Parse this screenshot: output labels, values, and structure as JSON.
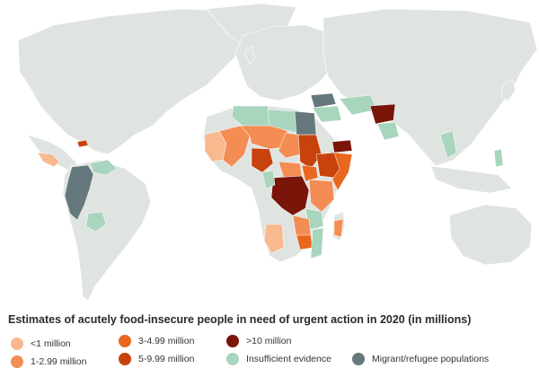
{
  "legend": {
    "title": "Estimates of acutely food-insecure people in need of urgent action in 2020 (in millions)",
    "items": [
      {
        "label": "<1 million",
        "color": "#f8b98f"
      },
      {
        "label": "1-2.99 million",
        "color": "#f38d54"
      },
      {
        "label": "3-4.99 million",
        "color": "#e8661e"
      },
      {
        "label": "5-9.99 million",
        "color": "#c7420d"
      },
      {
        "label": ">10 million",
        "color": "#7a1509"
      },
      {
        "label": "Insufficient evidence",
        "color": "#a8d5bd"
      },
      {
        "label": "Migrant/refugee populations",
        "color": "#65787d"
      }
    ]
  },
  "colors": {
    "land": "#dfe4e1",
    "water": "#ffffff"
  }
}
